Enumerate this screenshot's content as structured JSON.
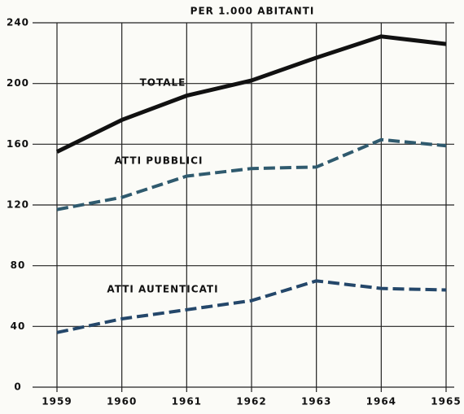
{
  "chart_data": {
    "type": "line",
    "title": "PER 1.000 ABITANTI",
    "x": [
      1959,
      1960,
      1961,
      1962,
      1963,
      1964,
      1965
    ],
    "xlim": [
      1959,
      1965
    ],
    "xticks": [
      1959,
      1960,
      1961,
      1962,
      1963,
      1964,
      1965
    ],
    "ylim": [
      0,
      240
    ],
    "yticks": [
      0,
      40,
      80,
      120,
      160,
      200,
      240
    ],
    "grid": true,
    "series": [
      {
        "name": "TOTALE",
        "color": "#111111",
        "style": "solid",
        "values": [
          155,
          176,
          192,
          202,
          217,
          231,
          226
        ]
      },
      {
        "name": "ATTI PUBBLICI",
        "color": "#2f5a6e",
        "style": "dashed",
        "values": [
          117,
          125,
          139,
          144,
          145,
          163,
          159
        ]
      },
      {
        "name": "ATTI AUTENTICATI",
        "color": "#24476a",
        "style": "dashed",
        "values": [
          36,
          45,
          51,
          57,
          70,
          65,
          64
        ]
      }
    ]
  }
}
